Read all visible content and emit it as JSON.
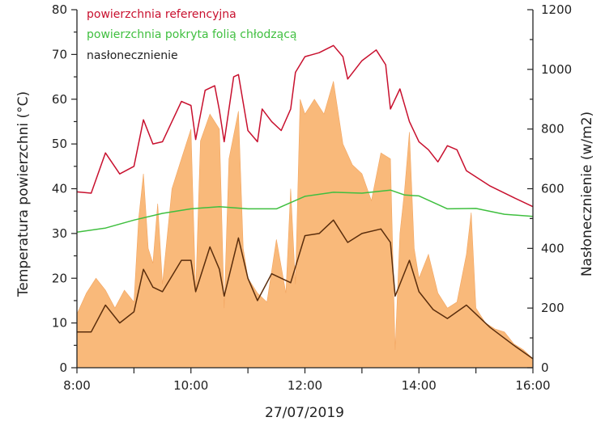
{
  "chart_data": {
    "type": "line",
    "title": "",
    "xlabel": "27/07/2019",
    "ylabel": "Temperatura powierzchni (°C)",
    "y2label": "Nasłonecznienie (w/m2)",
    "xlim": [
      "8:00",
      "16:00"
    ],
    "xticks": [
      "8:00",
      "10:00",
      "12:00",
      "14:00",
      "16:00"
    ],
    "ylim": [
      0,
      80
    ],
    "yticks": [
      0,
      10,
      20,
      30,
      40,
      50,
      60,
      70,
      80
    ],
    "y2lim": [
      0,
      1200
    ],
    "y2ticks": [
      0,
      200,
      400,
      600,
      800,
      1000,
      1200
    ],
    "grid": false,
    "legend_position": "top-left",
    "series": [
      {
        "name": "powierzchnia referencyjna",
        "axis": "left",
        "color": "#c8102e",
        "x": [
          "8:00",
          "8:15",
          "8:30",
          "8:45",
          "9:00",
          "9:10",
          "9:20",
          "9:30",
          "9:40",
          "9:50",
          "10:00",
          "10:05",
          "10:15",
          "10:25",
          "10:30",
          "10:35",
          "10:45",
          "10:50",
          "11:00",
          "11:10",
          "11:15",
          "11:25",
          "11:35",
          "11:45",
          "11:50",
          "12:00",
          "12:15",
          "12:30",
          "12:40",
          "12:45",
          "13:00",
          "13:15",
          "13:25",
          "13:30",
          "13:40",
          "13:50",
          "14:00",
          "14:10",
          "14:20",
          "14:30",
          "14:40",
          "14:50",
          "15:15",
          "15:40",
          "16:00"
        ],
        "y": [
          39.3,
          39,
          48,
          43.3,
          45,
          55.4,
          50,
          50.5,
          55,
          59.5,
          58.6,
          51,
          62,
          63,
          57.5,
          50.5,
          65,
          65.5,
          53,
          50.5,
          57.8,
          55,
          53,
          57.8,
          66,
          69.5,
          70.4,
          72,
          69.5,
          64.5,
          68.6,
          71,
          67.7,
          57.8,
          62.3,
          55,
          50.5,
          48.7,
          46,
          49.6,
          48.7,
          44,
          40.6,
          38,
          36
        ]
      },
      {
        "name": "powierzchnia pokryta folią chłodzącą",
        "axis": "left",
        "color": "#3fbf3f",
        "x": [
          "8:00",
          "8:30",
          "9:00",
          "9:30",
          "10:00",
          "10:30",
          "11:00",
          "11:30",
          "12:00",
          "12:30",
          "13:00",
          "13:30",
          "13:45",
          "14:00",
          "14:30",
          "15:00",
          "15:30",
          "16:00"
        ],
        "y": [
          30.3,
          31.2,
          33,
          34.5,
          35.5,
          36,
          35.5,
          35.5,
          38.3,
          39.2,
          39,
          39.7,
          38.6,
          38.4,
          35.5,
          35.6,
          34.3,
          33.8
        ]
      },
      {
        "name": "nasłonecznienie",
        "axis": "right",
        "type": "area",
        "color": "#f9b97a",
        "x": [
          "8:00",
          "8:10",
          "8:20",
          "8:30",
          "8:40",
          "8:50",
          "9:00",
          "9:05",
          "9:10",
          "9:15",
          "9:20",
          "9:25",
          "9:30",
          "9:40",
          "9:50",
          "10:00",
          "10:05",
          "10:10",
          "10:20",
          "10:30",
          "10:35",
          "10:40",
          "10:50",
          "10:55",
          "11:00",
          "11:10",
          "11:20",
          "11:30",
          "11:40",
          "11:45",
          "11:50",
          "11:55",
          "12:00",
          "12:10",
          "12:20",
          "12:30",
          "12:40",
          "12:50",
          "13:00",
          "13:10",
          "13:20",
          "13:30",
          "13:35",
          "13:40",
          "13:45",
          "13:50",
          "13:55",
          "14:00",
          "14:10",
          "14:20",
          "14:30",
          "14:40",
          "14:50",
          "14:55",
          "15:00",
          "15:10",
          "15:20",
          "15:30",
          "15:40",
          "15:50",
          "16:00"
        ],
        "y": [
          180,
          250,
          300,
          260,
          200,
          260,
          220,
          500,
          650,
          400,
          350,
          550,
          280,
          600,
          700,
          800,
          250,
          760,
          850,
          800,
          200,
          700,
          860,
          400,
          300,
          250,
          220,
          430,
          250,
          600,
          280,
          900,
          850,
          900,
          850,
          960,
          750,
          680,
          650,
          560,
          720,
          700,
          60,
          450,
          600,
          790,
          400,
          300,
          380,
          250,
          200,
          220,
          380,
          520,
          200,
          150,
          130,
          120,
          80,
          60,
          30
        ]
      },
      {
        "axis": "left",
        "color": "#5a2d0c",
        "x": [
          "8:00",
          "8:15",
          "8:30",
          "8:45",
          "9:00",
          "9:10",
          "9:20",
          "9:30",
          "9:50",
          "10:00",
          "10:05",
          "10:20",
          "10:30",
          "10:35",
          "10:50",
          "11:00",
          "11:10",
          "11:25",
          "11:45",
          "12:00",
          "12:15",
          "12:30",
          "12:45",
          "13:00",
          "13:20",
          "13:30",
          "13:35",
          "13:50",
          "14:00",
          "14:15",
          "14:30",
          "14:50",
          "15:15",
          "15:40",
          "16:00"
        ],
        "y": [
          8,
          8,
          14,
          10,
          12.5,
          22,
          18,
          17,
          24,
          24,
          17,
          27,
          22,
          16,
          29,
          20,
          15,
          21,
          19,
          29.5,
          30,
          33,
          28,
          30,
          31,
          28,
          16,
          24,
          17,
          13,
          11,
          14,
          9,
          5,
          2
        ]
      }
    ]
  }
}
